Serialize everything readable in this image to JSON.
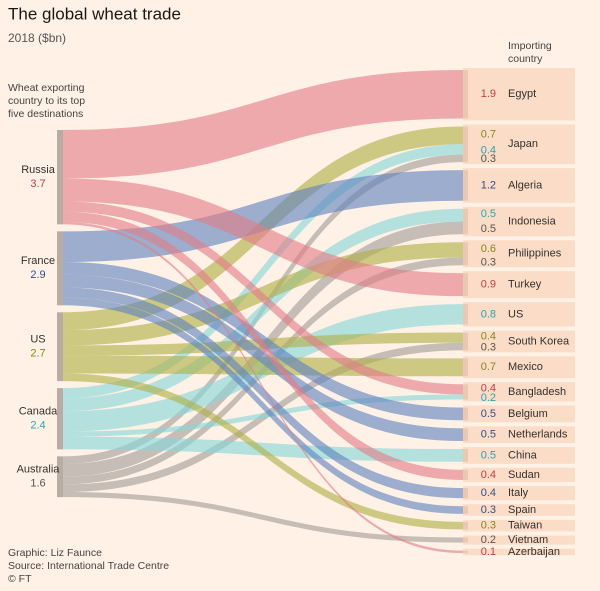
{
  "chart_data": {
    "type": "sankey",
    "title": "The global wheat trade",
    "subtitle": "2018 ($bn)",
    "left_note": [
      "Wheat exporting",
      "country to its top",
      "five destinations"
    ],
    "right_header": [
      "Importing",
      "country"
    ],
    "exporters": [
      {
        "name": "Russia",
        "value": 3.7,
        "color": "#e27c88",
        "label_color": "#c93a48"
      },
      {
        "name": "France",
        "value": 2.9,
        "color": "#5f82bf",
        "label_color": "#2f4f8a"
      },
      {
        "name": "US",
        "value": 2.7,
        "color": "#aeb047",
        "label_color": "#85871c"
      },
      {
        "name": "Canada",
        "value": 2.4,
        "color": "#86d6da",
        "label_color": "#2aa2b0"
      },
      {
        "name": "Australia",
        "value": 1.6,
        "color": "#a39d99",
        "label_color": "#555"
      }
    ],
    "importers": [
      {
        "name": "Egypt",
        "flows": [
          {
            "from": "Russia",
            "value": 1.9
          }
        ]
      },
      {
        "name": "Japan",
        "flows": [
          {
            "from": "US",
            "value": 0.7
          },
          {
            "from": "Canada",
            "value": 0.4
          },
          {
            "from": "Australia",
            "value": 0.3
          }
        ]
      },
      {
        "name": "Algeria",
        "flows": [
          {
            "from": "France",
            "value": 1.2
          }
        ]
      },
      {
        "name": "Indonesia",
        "flows": [
          {
            "from": "Canada",
            "value": 0.5
          },
          {
            "from": "Australia",
            "value": 0.5
          }
        ]
      },
      {
        "name": "Philippines",
        "flows": [
          {
            "from": "US",
            "value": 0.6
          },
          {
            "from": "Australia",
            "value": 0.3
          }
        ]
      },
      {
        "name": "Turkey",
        "flows": [
          {
            "from": "Russia",
            "value": 0.9
          }
        ]
      },
      {
        "name": "US",
        "flows": [
          {
            "from": "Canada",
            "value": 0.8
          }
        ]
      },
      {
        "name": "South Korea",
        "flows": [
          {
            "from": "US",
            "value": 0.4
          },
          {
            "from": "Australia",
            "value": 0.3
          }
        ]
      },
      {
        "name": "Mexico",
        "flows": [
          {
            "from": "US",
            "value": 0.7
          }
        ]
      },
      {
        "name": "Bangladesh",
        "flows": [
          {
            "from": "Russia",
            "value": 0.4
          },
          {
            "from": "Canada",
            "value": 0.2
          }
        ]
      },
      {
        "name": "Belgium",
        "flows": [
          {
            "from": "France",
            "value": 0.5
          }
        ]
      },
      {
        "name": "Netherlands",
        "flows": [
          {
            "from": "France",
            "value": 0.5
          }
        ]
      },
      {
        "name": "China",
        "flows": [
          {
            "from": "Canada",
            "value": 0.5
          }
        ]
      },
      {
        "name": "Sudan",
        "flows": [
          {
            "from": "Russia",
            "value": 0.4
          }
        ]
      },
      {
        "name": "Italy",
        "flows": [
          {
            "from": "France",
            "value": 0.4
          }
        ]
      },
      {
        "name": "Spain",
        "flows": [
          {
            "from": "France",
            "value": 0.3
          }
        ]
      },
      {
        "name": "Taiwan",
        "flows": [
          {
            "from": "US",
            "value": 0.3
          }
        ]
      },
      {
        "name": "Vietnam",
        "flows": [
          {
            "from": "Australia",
            "value": 0.2
          }
        ]
      },
      {
        "name": "Azerbaijan",
        "flows": [
          {
            "from": "Russia",
            "value": 0.1
          }
        ]
      }
    ],
    "footer": [
      "Graphic: Liz Faunce",
      "Source: International Trade Centre",
      "© FT"
    ]
  }
}
